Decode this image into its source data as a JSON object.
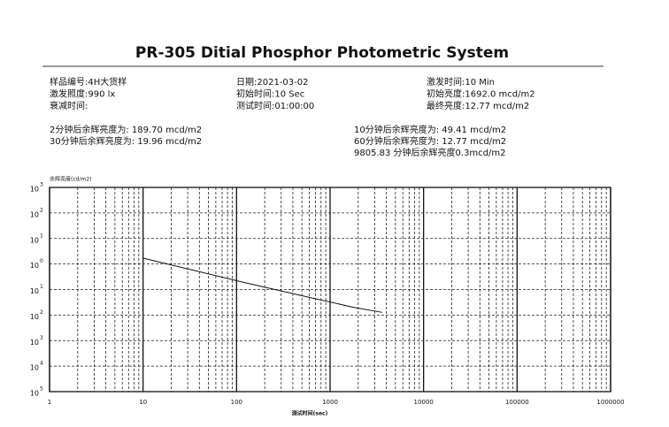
{
  "chart_data": {
    "type": "line",
    "title": "PR-305 Ditial Phosphor Photometric System",
    "info": [
      [
        "样品编号:4H大货样",
        "日期:2021-03-02",
        "激发时间:10 Min"
      ],
      [
        "激发照度:990 lx",
        "初始时间:10 Sec",
        "初始亮度:1692.0 mcd/m2"
      ],
      [
        "衰减时间:",
        "测试时间:01:00:00",
        "最终亮度:12.77 mcd/m2"
      ]
    ],
    "results": [
      [
        "2分钟后余辉亮度为:  189.70    mcd/m2",
        "10分钟后余辉亮度为:  49.41    mcd/m2"
      ],
      [
        "30分钟后余辉亮度为:  19.96    mcd/m2",
        "60分钟后余辉亮度为:  12.77    mcd/m2"
      ],
      [
        "",
        "9805.83 分钟后余辉亮度0.3mcd/m2"
      ]
    ],
    "y_label": "余辉亮度(cd/m2)",
    "x_label": "测试时间(sec)",
    "log_x": true,
    "log_y": true,
    "grid": true,
    "xlim": [
      1,
      1000000
    ],
    "xticks": [
      1,
      10,
      100,
      1000,
      10000,
      100000,
      1000000
    ],
    "ylim": [
      1e-05,
      1000
    ],
    "yticks": [
      {
        "value": 1000,
        "label": "10",
        "sup": "3"
      },
      {
        "value": 100,
        "label": "10",
        "sup": "2"
      },
      {
        "value": 10,
        "label": "10",
        "sup": "1"
      },
      {
        "value": 1,
        "label": "10",
        "sup": "0"
      },
      {
        "value": 0.1,
        "label": "10",
        "sup": "1"
      },
      {
        "value": 0.01,
        "label": "10",
        "sup": "2"
      },
      {
        "value": 0.001,
        "label": "10",
        "sup": "3"
      },
      {
        "value": 0.0001,
        "label": "10",
        "sup": "4"
      },
      {
        "value": 1e-05,
        "label": "10",
        "sup": "5"
      }
    ],
    "series": [
      {
        "name": "余辉亮度",
        "color": "#111111",
        "x": [
          10,
          120,
          600,
          1800,
          3600
        ],
        "values": [
          1.692,
          0.1897,
          0.04941,
          0.01996,
          0.01277
        ]
      }
    ]
  }
}
